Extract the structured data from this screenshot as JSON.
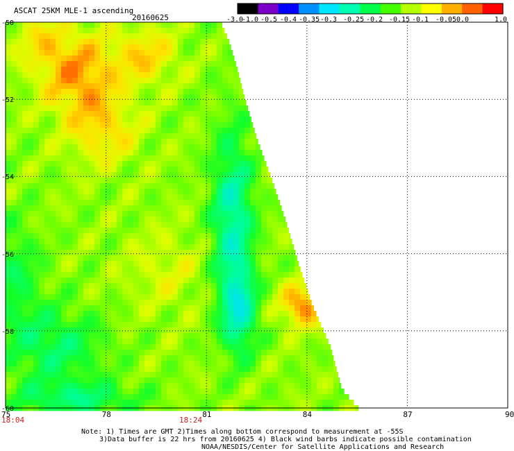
{
  "header": {
    "title": "ASCAT 25KM MLE-1 ascending",
    "date": "20160625"
  },
  "colorbar": {
    "labels": [
      "-3.0",
      "-1.0",
      "-0.5",
      "-0.4",
      "-0.35",
      "-0.3",
      "-0.25",
      "-0.2",
      "-0.15",
      "-0.1",
      "-0.05",
      "0.0",
      "1.0"
    ],
    "colors": [
      "#000000",
      "#7a00c8",
      "#0000ff",
      "#0090ff",
      "#00e6ff",
      "#00ffb0",
      "#00ff4a",
      "#44ff00",
      "#b4ff00",
      "#ffff00",
      "#ffb000",
      "#ff6000",
      "#ff0000"
    ]
  },
  "map": {
    "lat_labels": [
      "-50",
      "-52",
      "-54",
      "-56",
      "-58",
      "-60"
    ],
    "lon_labels": [
      "75",
      "78",
      "81",
      "84",
      "87",
      "90"
    ],
    "time_labels": [
      "18:04",
      "18:24"
    ],
    "lat_range": [
      -60,
      -50
    ],
    "lon_range": [
      75,
      90
    ]
  },
  "notes": {
    "line1": "Note: 1) Times are GMT 2)Times along bottom correspond to measurement at -55S",
    "line2": "3)Data buffer is 22 hrs from 20160625 4) Black wind barbs indicate possible contamination",
    "line3": "NOAA/NESDIS/Center for Satellite Applications and Research"
  }
}
